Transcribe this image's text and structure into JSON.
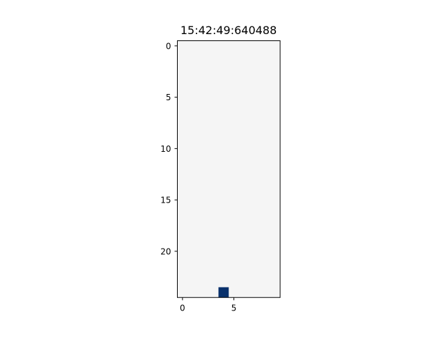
{
  "chart_data": {
    "type": "heatmap",
    "title": "15:42:49:640488",
    "xlabel": "",
    "ylabel": "",
    "grid_size": {
      "cols": 10,
      "rows": 25
    },
    "x_ticks": [
      0,
      5
    ],
    "y_ticks": [
      0,
      5,
      10,
      15,
      20
    ],
    "y_axis_inverted": true,
    "grid": false,
    "background_color": "#f5f5f5",
    "cells": [
      {
        "x": 4,
        "y": 24,
        "color": "#08306b"
      }
    ]
  }
}
